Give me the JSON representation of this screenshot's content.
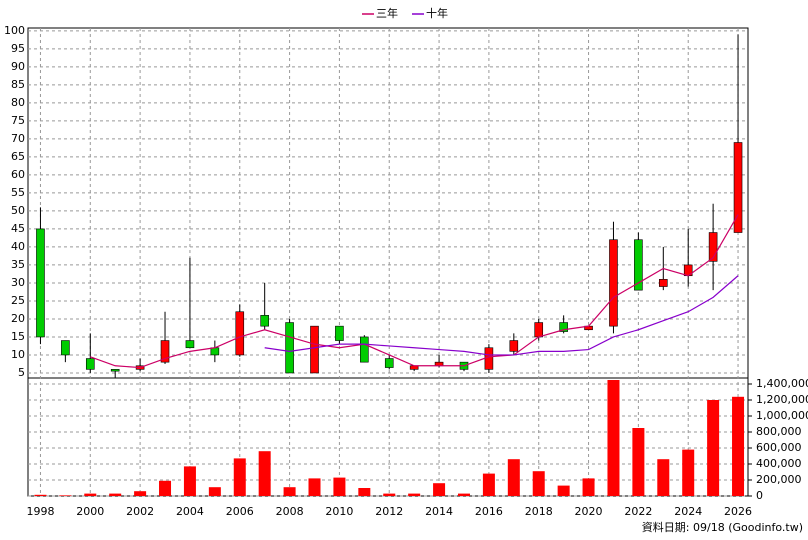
{
  "chart_data": {
    "type": "candlestick",
    "x": [
      1998,
      1999,
      2000,
      2001,
      2002,
      2003,
      2004,
      2005,
      2006,
      2007,
      2008,
      2009,
      2010,
      2011,
      2012,
      2013,
      2014,
      2015,
      2016,
      2017,
      2018,
      2019,
      2020,
      2021,
      2022,
      2023,
      2024,
      2025,
      2026
    ],
    "open": [
      45,
      14,
      9,
      6,
      6,
      8,
      14,
      12,
      10,
      21,
      19,
      5,
      18,
      15,
      9,
      6,
      7,
      8,
      6,
      11,
      15,
      19,
      17,
      18,
      42,
      29,
      32,
      36,
      44
    ],
    "high": [
      51,
      14,
      16,
      6,
      9,
      22,
      37,
      14,
      24,
      30,
      20,
      18,
      18,
      15.5,
      10,
      7,
      10,
      8,
      13,
      16,
      20,
      21,
      18,
      47,
      44,
      40,
      45,
      52,
      99
    ],
    "low": [
      13,
      8,
      5,
      3.5,
      5.5,
      7.5,
      12,
      8,
      9.5,
      17,
      5,
      5,
      13,
      8,
      6,
      5.5,
      6.5,
      5.5,
      5,
      10,
      14,
      16,
      17,
      16,
      28,
      28,
      29,
      28,
      44
    ],
    "close": [
      15,
      10,
      6,
      5.5,
      7,
      14,
      12,
      10,
      22,
      18,
      5,
      18,
      14,
      8,
      6.5,
      7,
      8,
      6,
      12,
      14,
      19,
      16.5,
      18,
      42,
      28,
      31,
      35,
      44,
      69
    ],
    "up_color": "#ff0000",
    "down_color": "#00cc00",
    "series": [
      {
        "name": "三年",
        "color": "#cc0066",
        "values": [
          null,
          null,
          9.5,
          7,
          6.5,
          9,
          11,
          12,
          15,
          17,
          15,
          13,
          12,
          13,
          10,
          7,
          7,
          7,
          9.5,
          10,
          15,
          17,
          18,
          26,
          30,
          34,
          32,
          37,
          49
        ]
      },
      {
        "name": "十年",
        "color": "#8800cc",
        "values": [
          null,
          null,
          null,
          null,
          null,
          null,
          null,
          null,
          null,
          12,
          11,
          12,
          13,
          13,
          12.5,
          12,
          11.5,
          11,
          10,
          10,
          11,
          11,
          11.5,
          15,
          17,
          19.5,
          22,
          26,
          32
        ]
      }
    ],
    "xlim": [
      1997.5,
      2026.4
    ],
    "xticks": [
      1998,
      2000,
      2002,
      2004,
      2006,
      2008,
      2010,
      2012,
      2014,
      2016,
      2018,
      2020,
      2022,
      2024,
      2026
    ],
    "ylim": [
      3.6,
      100.8
    ],
    "yticks": [
      5,
      10,
      15,
      20,
      25,
      30,
      35,
      40,
      45,
      50,
      55,
      60,
      65,
      70,
      75,
      80,
      85,
      90,
      95,
      100
    ],
    "volume": {
      "color": "#ff0000",
      "values": [
        15000,
        8000,
        30000,
        30000,
        60000,
        190000,
        370000,
        110000,
        470000,
        560000,
        110000,
        220000,
        230000,
        100000,
        30000,
        30000,
        160000,
        30000,
        280000,
        460000,
        310000,
        130000,
        220000,
        1450000,
        850000,
        460000,
        580000,
        1200000,
        1240000
      ],
      "ylim": [
        0,
        1475000
      ],
      "yticks": [
        0,
        {
          "value": 200000,
          "label": "200,000"
        },
        {
          "value": 400000,
          "label": "400,000"
        },
        {
          "value": 600000,
          "label": "600,000"
        },
        {
          "value": 800000,
          "label": "800,000"
        },
        {
          "value": 1000000,
          "label": "1,000,000"
        },
        {
          "value": 1200000,
          "label": "1,200,000"
        },
        {
          "value": 1400000,
          "label": "1,400,000"
        }
      ]
    },
    "grid": true,
    "footnote": "資料日期: 09/18 (Goodinfo.tw)"
  }
}
